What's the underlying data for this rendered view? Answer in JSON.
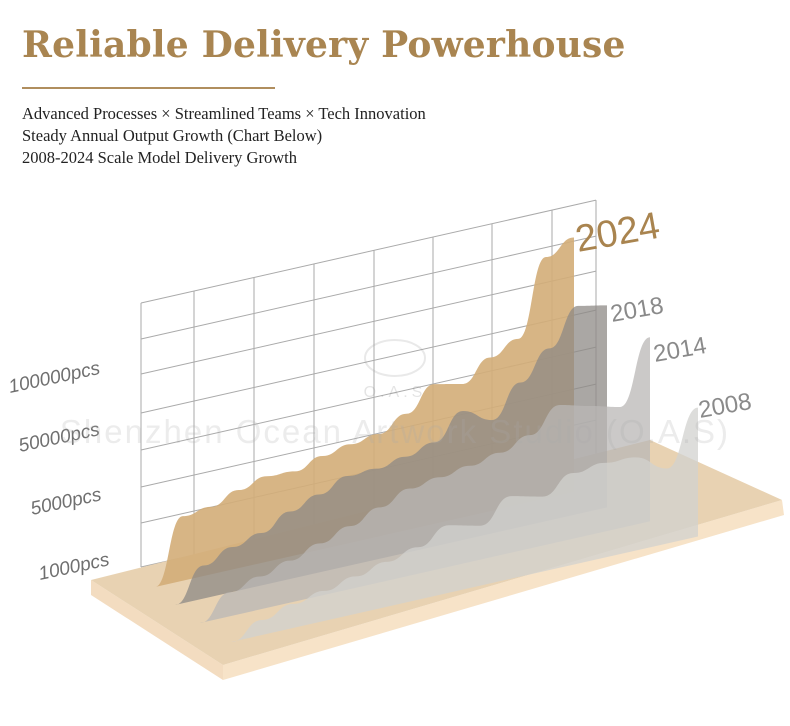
{
  "header": {
    "title": "Reliable Delivery Powerhouse",
    "subtitles": [
      "Advanced Processes × Streamlined Teams × Tech Innovation",
      "Steady Annual Output Growth (Chart Below)",
      "2008-2024 Scale Model Delivery Growth"
    ]
  },
  "watermark": {
    "text": "Shenzhen Ocean Artwork Studio (O.A.S)",
    "logo_text": "O.A.S"
  },
  "chart_data": {
    "type": "area",
    "title": "",
    "xlabel": "",
    "ylabel": "",
    "y_ticks": [
      {
        "value": 1000,
        "label": "1000pcs"
      },
      {
        "value": 5000,
        "label": "5000pcs"
      },
      {
        "value": 50000,
        "label": "50000pcs"
      },
      {
        "value": 100000,
        "label": "100000pcs"
      }
    ],
    "grid": true,
    "style": "3d-stacked-depth",
    "series": [
      {
        "name": "2008",
        "color": "#d2d1cf",
        "values": [
          0,
          500,
          800,
          1000,
          1500,
          2000,
          2500,
          3500,
          3000,
          4500,
          4000,
          6000,
          8000,
          7000,
          4000,
          30000
        ]
      },
      {
        "name": "2014",
        "color": "#b9b7b5",
        "values": [
          0,
          800,
          1200,
          1800,
          2500,
          3200,
          4000,
          4800,
          6000,
          9000,
          13000,
          20000,
          35000,
          30000,
          25000,
          70000
        ]
      },
      {
        "name": "2018",
        "color": "#8e8985",
        "values": [
          0,
          1200,
          2000,
          2500,
          3500,
          4200,
          5000,
          5500,
          9000,
          14000,
          30000,
          20000,
          40000,
          60000,
          90000,
          85000
        ]
      },
      {
        "name": "2024",
        "color": "#d3ad78",
        "values": [
          0,
          3300,
          3500,
          4200,
          4700,
          4600,
          7000,
          10500,
          13000,
          22000,
          37000,
          33000,
          46000,
          55000,
          118000,
          129000
        ]
      }
    ],
    "year_label_colors": {
      "2024": "#a9844f",
      "others": "#8a8a8a"
    },
    "floor_color": "#e8d2b2"
  }
}
